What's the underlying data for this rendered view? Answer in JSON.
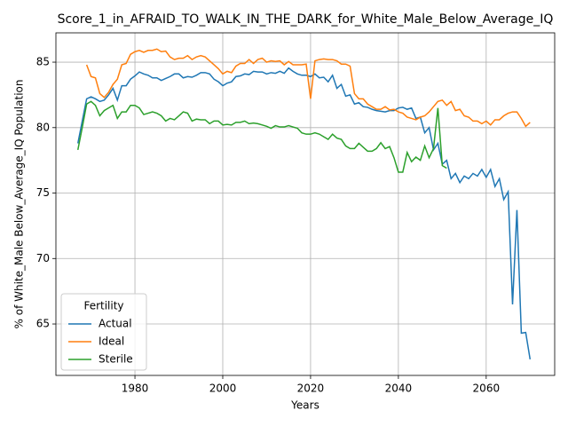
{
  "chart_data": {
    "type": "line",
    "title": "Score_1_in_AFRAID_TO_WALK_IN_THE_DARK_for_White_Male_Below_Average_IQ",
    "x_label": "Years",
    "y_label": "% of White_Male Below_Average_IQ Population",
    "legend_title": "Fertility",
    "legend": "lower left",
    "grid": true,
    "xlim": [
      1962.0,
      2075.6
    ],
    "ylim": [
      61.07,
      87.24
    ],
    "xticks": [
      1980,
      2000,
      2020,
      2040,
      2060
    ],
    "yticks": [
      65,
      70,
      75,
      80,
      85
    ],
    "x": [
      1967,
      1968,
      1969,
      1970,
      1971,
      1972,
      1973,
      1974,
      1975,
      1976,
      1977,
      1978,
      1979,
      1980,
      1981,
      1982,
      1983,
      1984,
      1985,
      1986,
      1987,
      1988,
      1989,
      1990,
      1991,
      1992,
      1993,
      1994,
      1995,
      1996,
      1997,
      1998,
      1999,
      2000,
      2001,
      2002,
      2003,
      2004,
      2005,
      2006,
      2007,
      2008,
      2009,
      2010,
      2011,
      2012,
      2013,
      2014,
      2015,
      2016,
      2017,
      2018,
      2019,
      2020,
      2021,
      2022,
      2023,
      2024,
      2025,
      2026,
      2027,
      2028,
      2029,
      2030,
      2031,
      2032,
      2033,
      2034,
      2035,
      2036,
      2037,
      2038,
      2039,
      2040,
      2041,
      2042,
      2043,
      2044,
      2045,
      2046,
      2047,
      2048,
      2049,
      2050,
      2051,
      2052,
      2053,
      2054,
      2055,
      2056,
      2057,
      2058,
      2059,
      2060,
      2061,
      2062,
      2063,
      2064,
      2065,
      2066,
      2067,
      2068,
      2069,
      2070
    ],
    "series": [
      {
        "name": "Actual",
        "color": "#1f77b4",
        "values": [
          78.8,
          80.5,
          82.2,
          82.35,
          82.2,
          82.0,
          82.1,
          82.5,
          83.0,
          82.1,
          83.2,
          83.2,
          83.7,
          83.95,
          84.25,
          84.1,
          84.0,
          83.8,
          83.8,
          83.6,
          83.75,
          83.9,
          84.1,
          84.1,
          83.8,
          83.9,
          83.85,
          84.0,
          84.2,
          84.2,
          84.1,
          83.7,
          83.5,
          83.2,
          83.4,
          83.5,
          83.9,
          83.95,
          84.1,
          84.05,
          84.3,
          84.25,
          84.25,
          84.1,
          84.2,
          84.15,
          84.3,
          84.15,
          84.55,
          84.3,
          84.1,
          84.0,
          84.0,
          83.9,
          84.1,
          83.8,
          83.85,
          83.5,
          84.0,
          83.0,
          83.3,
          82.4,
          82.5,
          81.8,
          81.9,
          81.6,
          81.55,
          81.4,
          81.3,
          81.25,
          81.2,
          81.3,
          81.3,
          81.5,
          81.55,
          81.4,
          81.5,
          80.7,
          80.8,
          79.6,
          80.0,
          78.3,
          78.8,
          77.2,
          77.5,
          76.1,
          76.5,
          75.8,
          76.3,
          76.1,
          76.5,
          76.3,
          76.8,
          76.2,
          76.8,
          75.5,
          76.1,
          74.5,
          75.1,
          66.5,
          73.7,
          64.3,
          64.35,
          62.3
        ]
      },
      {
        "name": "Ideal",
        "color": "#ff7f0e",
        "values": [
          null,
          null,
          84.8,
          83.9,
          83.8,
          82.6,
          82.3,
          82.7,
          83.3,
          83.7,
          84.8,
          84.9,
          85.6,
          85.8,
          85.9,
          85.75,
          85.9,
          85.9,
          86.0,
          85.8,
          85.85,
          85.4,
          85.2,
          85.3,
          85.3,
          85.5,
          85.2,
          85.4,
          85.5,
          85.4,
          85.1,
          84.8,
          84.5,
          84.1,
          84.3,
          84.2,
          84.7,
          84.9,
          84.9,
          85.2,
          84.9,
          85.2,
          85.3,
          85.0,
          85.1,
          85.05,
          85.1,
          84.8,
          85.05,
          84.8,
          84.8,
          84.8,
          84.85,
          82.2,
          85.1,
          85.2,
          85.25,
          85.2,
          85.2,
          85.1,
          84.85,
          84.85,
          84.7,
          82.6,
          82.2,
          82.2,
          81.8,
          81.6,
          81.4,
          81.4,
          81.6,
          81.35,
          81.4,
          81.2,
          81.1,
          80.8,
          80.7,
          80.6,
          80.8,
          80.9,
          81.2,
          81.6,
          82.0,
          82.1,
          81.7,
          82.0,
          81.3,
          81.4,
          80.9,
          80.8,
          80.5,
          80.5,
          80.3,
          80.5,
          80.2,
          80.6,
          80.6,
          80.9,
          81.1,
          81.2,
          81.2,
          80.7,
          80.1,
          80.4
        ]
      },
      {
        "name": "Sterile",
        "color": "#2ca02c",
        "values": [
          78.3,
          80.0,
          81.8,
          82.0,
          81.7,
          80.9,
          81.3,
          81.5,
          81.7,
          80.7,
          81.2,
          81.2,
          81.7,
          81.7,
          81.5,
          81.0,
          81.1,
          81.2,
          81.1,
          80.9,
          80.5,
          80.7,
          80.6,
          80.9,
          81.2,
          81.1,
          80.5,
          80.65,
          80.6,
          80.6,
          80.3,
          80.5,
          80.5,
          80.2,
          80.25,
          80.2,
          80.4,
          80.4,
          80.5,
          80.3,
          80.35,
          80.3,
          80.2,
          80.1,
          79.95,
          80.15,
          80.05,
          80.05,
          80.15,
          80.05,
          79.95,
          79.6,
          79.5,
          79.5,
          79.6,
          79.5,
          79.3,
          79.1,
          79.5,
          79.2,
          79.1,
          78.6,
          78.4,
          78.4,
          78.8,
          78.5,
          78.2,
          78.2,
          78.4,
          78.85,
          78.4,
          78.55,
          77.7,
          76.6,
          76.6,
          78.1,
          77.4,
          77.75,
          77.5,
          78.6,
          77.7,
          78.4,
          81.5,
          77.1,
          76.9,
          null,
          null,
          null,
          null,
          null,
          null,
          null,
          null,
          null,
          null,
          null,
          null,
          null,
          null,
          null,
          null,
          null,
          null,
          null
        ]
      }
    ]
  }
}
